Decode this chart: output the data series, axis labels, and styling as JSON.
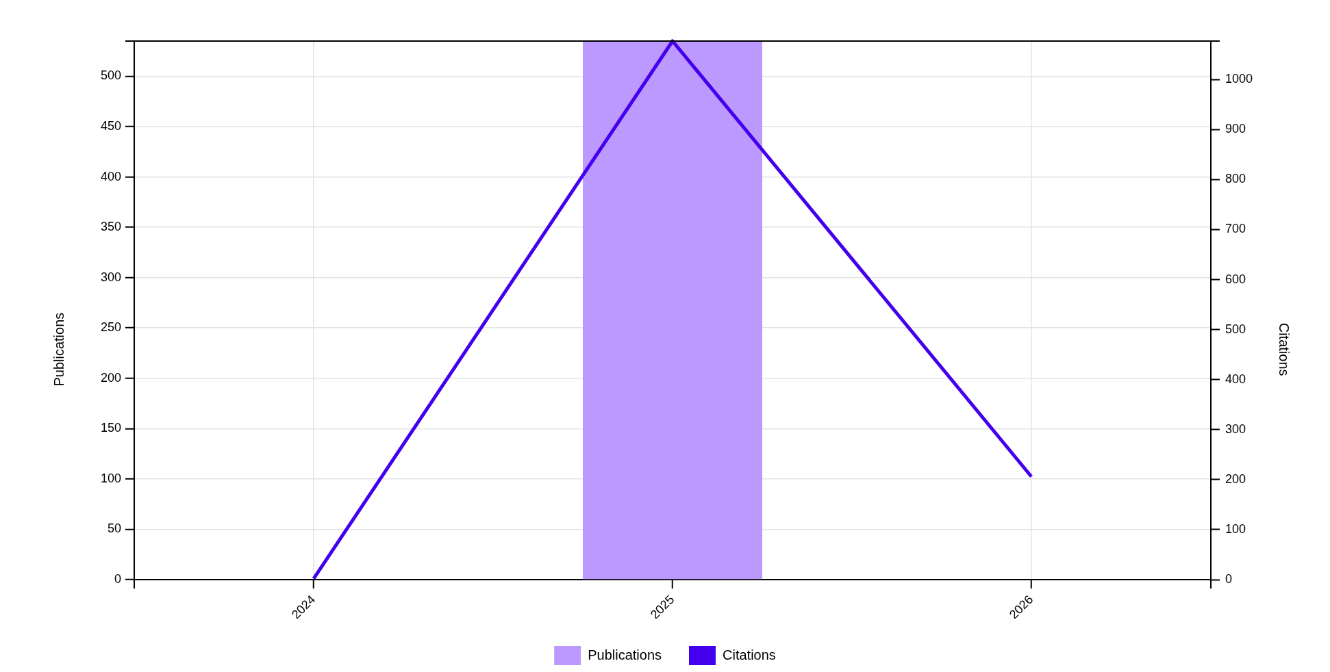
{
  "chart_data": {
    "type": "bar",
    "categories": [
      "2024",
      "2025",
      "2026"
    ],
    "ylabel": "Publications",
    "y2label": "Citations",
    "series": [
      {
        "name": "Publications",
        "color": "#bb99ff",
        "values": [
          0,
          535,
          0
        ]
      },
      {
        "name": "Citations",
        "type": "line",
        "axis": "y2",
        "color": "#4400ee",
        "values": [
          2,
          1077,
          206
        ]
      }
    ],
    "ylim": [
      0,
      535
    ],
    "yticks": [
      0,
      50,
      100,
      150,
      200,
      250,
      300,
      350,
      400,
      450,
      500
    ],
    "y2lim": [
      0,
      1077
    ],
    "y2ticks": [
      0,
      100,
      200,
      300,
      400,
      500,
      600,
      700,
      800,
      900,
      1000
    ],
    "grid": true,
    "legend": "bottom"
  }
}
